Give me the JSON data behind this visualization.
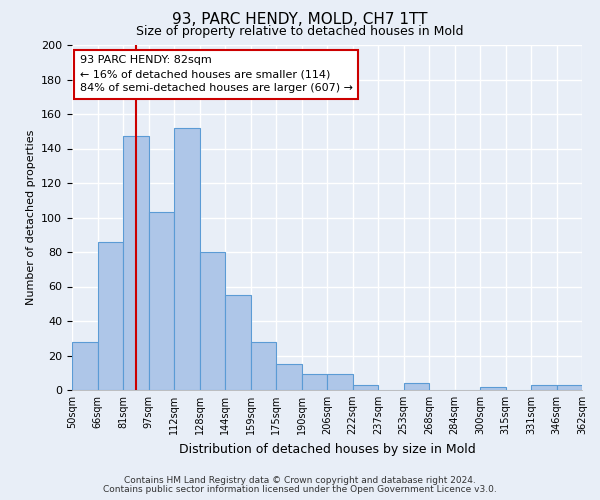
{
  "title": "93, PARC HENDY, MOLD, CH7 1TT",
  "subtitle": "Size of property relative to detached houses in Mold",
  "xlabel": "Distribution of detached houses by size in Mold",
  "ylabel": "Number of detached properties",
  "bin_labels": [
    "50sqm",
    "66sqm",
    "81sqm",
    "97sqm",
    "112sqm",
    "128sqm",
    "144sqm",
    "159sqm",
    "175sqm",
    "190sqm",
    "206sqm",
    "222sqm",
    "237sqm",
    "253sqm",
    "268sqm",
    "284sqm",
    "300sqm",
    "315sqm",
    "331sqm",
    "346sqm",
    "362sqm"
  ],
  "bar_heights": [
    28,
    86,
    147,
    103,
    152,
    80,
    55,
    28,
    15,
    9,
    9,
    3,
    0,
    4,
    0,
    0,
    2,
    0,
    3,
    3
  ],
  "bar_color": "#aec6e8",
  "bar_edge_color": "#5b9bd5",
  "vline_x_idx": 2,
  "vline_color": "#cc0000",
  "ylim": [
    0,
    200
  ],
  "yticks": [
    0,
    20,
    40,
    60,
    80,
    100,
    120,
    140,
    160,
    180,
    200
  ],
  "annotation_title": "93 PARC HENDY: 82sqm",
  "annotation_line1": "← 16% of detached houses are smaller (114)",
  "annotation_line2": "84% of semi-detached houses are larger (607) →",
  "annotation_box_color": "#cc0000",
  "footer1": "Contains HM Land Registry data © Crown copyright and database right 2024.",
  "footer2": "Contains public sector information licensed under the Open Government Licence v3.0.",
  "background_color": "#e8eef7",
  "grid_color": "#ffffff"
}
